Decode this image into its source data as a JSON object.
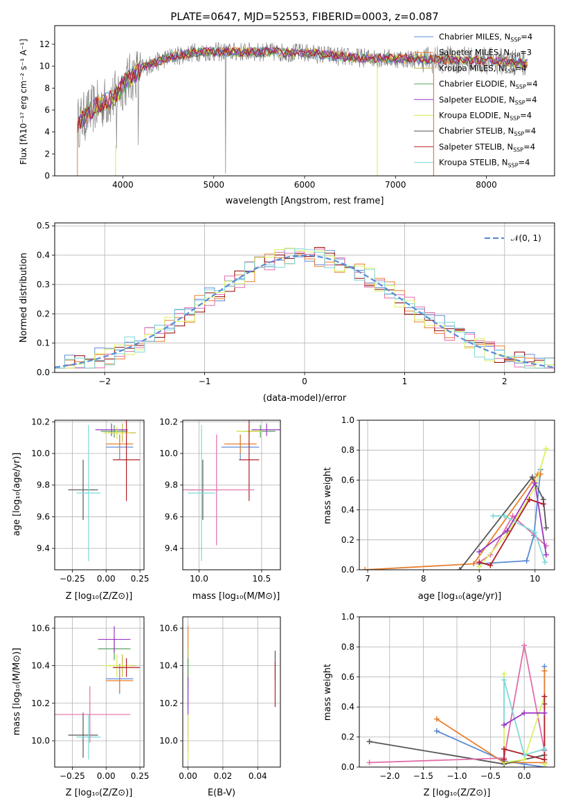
{
  "title": "PLATE=0647, MJD=52553, FIBERID=0003, z=0.087",
  "colors": {
    "model_colors": [
      "#5b8bd6",
      "#e87e2c",
      "#c8b43a",
      "#55a05a",
      "#9b35c2",
      "#d9e84a",
      "#555555",
      "#b01c24",
      "#7dd8d8"
    ],
    "data_color": "#808080",
    "normal_color": "#5b8bd6",
    "hist_colors": [
      "#5b8bd6",
      "#e87e2c",
      "#8b0000",
      "#e06ca8",
      "#d9f060",
      "#7dd8d8"
    ]
  },
  "panels": {
    "spectrum": {
      "xlabel": "wavelength [Angstrom, rest frame]",
      "ylabel": "Flux [fλ10⁻¹⁷ erg cm⁻² s⁻¹ A⁻¹]"
    },
    "resid": {
      "xlabel": "(data-model)/error",
      "ylabel": "Normed distribution",
      "legend": "𝒩(0, 1)"
    },
    "age_z": {
      "xlabel": "Z [log₁₀(Z/Z⊙)]",
      "ylabel": "age  [log₁₀(age/yr)]"
    },
    "age_mass": {
      "xlabel": "mass [log₁₀(M/M⊙)]"
    },
    "mw_age": {
      "xlabel": "age  [log₁₀(age/yr)]",
      "ylabel": "mass weight"
    },
    "mass_z": {
      "xlabel": "Z [log₁₀(Z/Z⊙)]",
      "ylabel": "mass [log₁₀(M/M⊙)]"
    },
    "mass_ebv": {
      "xlabel": "E(B-V)"
    },
    "mw_z": {
      "xlabel": "Z [log₁₀(Z/Z⊙)]",
      "ylabel": "mass weight"
    }
  },
  "chart_data": [
    {
      "id": "spectrum",
      "type": "line",
      "xlim": [
        3250,
        8750
      ],
      "ylim": [
        0,
        13.7
      ],
      "xticks": [
        4000,
        5000,
        6000,
        7000,
        8000
      ],
      "yticks": [
        0,
        2,
        4,
        6,
        8,
        10,
        12
      ],
      "legend_position": "right",
      "series": [
        {
          "name": "Chabrier MILES, N_SSP=4"
        },
        {
          "name": "Salpeter MILES, N_SSP=3"
        },
        {
          "name": "Kroupa MILES, N_SSP=4"
        },
        {
          "name": "Chabrier ELODIE, N_SSP=4"
        },
        {
          "name": "Salpeter ELODIE, N_SSP=4"
        },
        {
          "name": "Kroupa ELODIE, N_SSP=4"
        },
        {
          "name": "Chabrier STELIB, N_SSP=4"
        },
        {
          "name": "Salpeter STELIB, N_SSP=4"
        },
        {
          "name": "Kroupa STELIB, N_SSP=4"
        }
      ],
      "continuum": {
        "x": [
          3500,
          3700,
          3900,
          4000,
          4200,
          4500,
          4800,
          5000,
          5500,
          6000,
          6500,
          7000,
          7500,
          8000,
          8450
        ],
        "y": [
          4.8,
          6.3,
          7.1,
          8.3,
          9.8,
          10.8,
          11.3,
          11.3,
          11.3,
          11.2,
          10.8,
          10.7,
          10.6,
          10.5,
          10.3
        ]
      }
    },
    {
      "id": "resid",
      "type": "line",
      "xlim": [
        -2.5,
        2.5
      ],
      "ylim": [
        0,
        0.51
      ],
      "xticks": [
        -2,
        -1,
        0,
        1,
        2
      ],
      "yticks": [
        0.0,
        0.1,
        0.2,
        0.3,
        0.4,
        0.5
      ],
      "grid": true,
      "legend_position": "top-right",
      "bin_width": 0.1,
      "series": [
        {
          "name": "𝒩(0, 1)",
          "mu": 0,
          "sigma": 1
        }
      ]
    },
    {
      "id": "age_z",
      "type": "scatter",
      "xlim": [
        -0.38,
        0.28
      ],
      "ylim": [
        9.265,
        10.21
      ],
      "xticks": [
        -0.25,
        0.0,
        0.25
      ],
      "yticks": [
        9.4,
        9.6,
        9.8,
        10.0,
        10.2
      ],
      "grid": true,
      "points": [
        {
          "x": 0.1,
          "y": 10.04,
          "xerr": 0.1,
          "yerr": 0.08
        },
        {
          "x": 0.1,
          "y": 10.06,
          "xerr": 0.1,
          "yerr": 0.06
        },
        {
          "x": 0.12,
          "y": 10.13,
          "xerr": 0.1,
          "yerr": 0.06
        },
        {
          "x": 0.06,
          "y": 10.14,
          "xerr": 0.1,
          "yerr": 0.04
        },
        {
          "x": 0.04,
          "y": 10.15,
          "xerr": 0.12,
          "yerr": 0.04
        },
        {
          "x": 0.08,
          "y": 10.13,
          "xerr": 0.1,
          "yerr": 0.04
        },
        {
          "x": -0.17,
          "y": 9.77,
          "xerr": 0.11,
          "yerr": 0.19
        },
        {
          "x": 0.15,
          "y": 9.96,
          "xerr": 0.1,
          "yerr": 0.26
        },
        {
          "x": -0.13,
          "y": 9.75,
          "xerr": 0.09,
          "yerr": 0.43
        }
      ]
    },
    {
      "id": "age_mass",
      "type": "scatter",
      "xlim": [
        9.87,
        10.65
      ],
      "ylim": [
        9.265,
        10.21
      ],
      "xticks": [
        10.0,
        10.5
      ],
      "yticks": [
        9.4,
        9.6,
        9.8,
        10.0,
        10.2
      ],
      "grid": true,
      "points": [
        {
          "x": 10.33,
          "y": 10.04,
          "xerr": 0.15,
          "yerr": 0.08
        },
        {
          "x": 10.33,
          "y": 10.06,
          "xerr": 0.13,
          "yerr": 0.06
        },
        {
          "x": 10.4,
          "y": 10.14,
          "xerr": 0.1,
          "yerr": 0.04
        },
        {
          "x": 10.49,
          "y": 10.14,
          "xerr": 0.12,
          "yerr": 0.04
        },
        {
          "x": 10.54,
          "y": 10.15,
          "xerr": 0.12,
          "yerr": 0.04
        },
        {
          "x": 10.4,
          "y": 10.14,
          "xerr": 0.1,
          "yerr": 0.04
        },
        {
          "x": 10.03,
          "y": 9.77,
          "xerr": 0.13,
          "yerr": 0.19
        },
        {
          "x": 10.4,
          "y": 9.96,
          "xerr": 0.08,
          "yerr": 0.26
        },
        {
          "x": 10.02,
          "y": 9.75,
          "xerr": 0.11,
          "yerr": 0.43
        },
        {
          "x": 10.14,
          "y": 9.77,
          "xerr": 0.3,
          "yerr": 0.35
        }
      ]
    },
    {
      "id": "mw_age",
      "type": "line",
      "xlim": [
        6.85,
        10.35
      ],
      "ylim": [
        0,
        1.0
      ],
      "xticks": [
        7,
        8,
        9,
        10
      ],
      "yticks": [
        0.0,
        0.2,
        0.4,
        0.6,
        0.8,
        1.0
      ],
      "grid": true,
      "series": [
        {
          "x": [
            9.0,
            9.85,
            9.98,
            10.1
          ],
          "y": [
            0.04,
            0.06,
            0.23,
            0.67
          ]
        },
        {
          "x": [
            6.95,
            8.9,
            10.05,
            10.1
          ],
          "y": [
            0.0,
            0.04,
            0.64,
            0.64
          ]
        },
        {
          "x": [
            8.65,
            9.95,
            10.15,
            10.2
          ],
          "y": [
            0.0,
            0.62,
            0.47,
            0.28
          ]
        },
        {
          "x": [
            9.0,
            9.2,
            9.6,
            10.2
          ],
          "y": [
            0.05,
            0.1,
            0.36,
            0.16
          ]
        },
        {
          "x": [
            9.0,
            9.5,
            10.0,
            10.2
          ],
          "y": [
            0.02,
            0.24,
            0.55,
            0.81
          ]
        },
        {
          "x": [
            9.0,
            9.2,
            9.9,
            10.15
          ],
          "y": [
            0.05,
            0.03,
            0.47,
            0.44
          ]
        },
        {
          "x": [
            9.25,
            9.45,
            10.0,
            10.18
          ],
          "y": [
            0.36,
            0.36,
            0.25,
            0.05
          ]
        },
        {
          "x": [
            9.0,
            9.5,
            10.0,
            10.2
          ],
          "y": [
            0.12,
            0.26,
            0.58,
            0.1
          ]
        }
      ]
    },
    {
      "id": "mass_z",
      "type": "scatter",
      "xlim": [
        -0.38,
        0.28
      ],
      "ylim": [
        9.86,
        10.66
      ],
      "xticks": [
        -0.25,
        0.0,
        0.25
      ],
      "yticks": [
        10.0,
        10.2,
        10.4,
        10.6
      ],
      "grid": true,
      "points": [
        {
          "x": 0.1,
          "y": 10.33,
          "xerr": 0.1,
          "yerr": 0.08
        },
        {
          "x": 0.1,
          "y": 10.32,
          "xerr": 0.1,
          "yerr": 0.06
        },
        {
          "x": 0.12,
          "y": 10.4,
          "xerr": 0.1,
          "yerr": 0.06
        },
        {
          "x": 0.06,
          "y": 10.49,
          "xerr": 0.12,
          "yerr": 0.06
        },
        {
          "x": 0.06,
          "y": 10.54,
          "xerr": 0.12,
          "yerr": 0.07
        },
        {
          "x": 0.08,
          "y": 10.4,
          "xerr": 0.1,
          "yerr": 0.06
        },
        {
          "x": -0.17,
          "y": 10.03,
          "xerr": 0.11,
          "yerr": 0.12
        },
        {
          "x": 0.15,
          "y": 10.39,
          "xerr": 0.1,
          "yerr": 0.05
        },
        {
          "x": -0.13,
          "y": 10.02,
          "xerr": 0.09,
          "yerr": 0.12
        },
        {
          "x": -0.12,
          "y": 10.14,
          "xerr": 0.3,
          "yerr": 0.15
        }
      ]
    },
    {
      "id": "mass_ebv",
      "type": "scatter",
      "xlim": [
        -0.003,
        0.053
      ],
      "ylim": [
        9.86,
        10.66
      ],
      "xticks": [
        0.0,
        0.02,
        0.04
      ],
      "yticks": [
        10.0,
        10.2,
        10.4,
        10.6
      ],
      "grid": true,
      "points": [
        {
          "x": 0.0,
          "y": 10.33,
          "xerr": 0,
          "yerr": 0.15
        },
        {
          "x": 0.0,
          "y": 10.54,
          "xerr": 0,
          "yerr": 0.07
        },
        {
          "x": 0.0,
          "y": 10.4,
          "xerr": 0,
          "yerr": 0.1
        },
        {
          "x": 0.0,
          "y": 10.36,
          "xerr": 0,
          "yerr": 0.08
        },
        {
          "x": 0.0,
          "y": 10.14,
          "xerr": 0,
          "yerr": 0.2
        },
        {
          "x": 0.0,
          "y": 10.02,
          "xerr": 0,
          "yerr": 0.12
        },
        {
          "x": 0.05,
          "y": 10.4,
          "xerr": 0,
          "yerr": 0.08
        },
        {
          "x": 0.05,
          "y": 10.3,
          "xerr": 0,
          "yerr": 0.12
        }
      ]
    },
    {
      "id": "mw_z",
      "type": "line",
      "xlim": [
        -2.45,
        0.45
      ],
      "ylim": [
        0,
        1.0
      ],
      "xticks": [
        -2.0,
        -1.5,
        -1.0,
        -0.5,
        0.0
      ],
      "yticks": [
        0.0,
        0.2,
        0.4,
        0.6,
        0.8,
        1.0
      ],
      "grid": true,
      "series": [
        {
          "x": [
            -1.3,
            -0.3,
            0.0,
            0.3,
            0.3
          ],
          "y": [
            0.24,
            0.04,
            0.02,
            0.0,
            0.67
          ]
        },
        {
          "x": [
            -1.3,
            -0.3,
            0.3,
            0.3
          ],
          "y": [
            0.32,
            0.03,
            0.03,
            0.64
          ]
        },
        {
          "x": [
            -2.3,
            -0.3,
            0.3,
            0.3
          ],
          "y": [
            0.17,
            0.02,
            0.08,
            0.42
          ]
        },
        {
          "x": [
            -2.3,
            -0.3,
            0.0,
            0.3
          ],
          "y": [
            0.03,
            0.06,
            0.81,
            0.11
          ]
        },
        {
          "x": [
            -0.3,
            -0.3,
            0.0,
            0.3,
            0.3
          ],
          "y": [
            0.62,
            0.03,
            0.05,
            0.47,
            0.02
          ]
        },
        {
          "x": [
            -0.3,
            -0.3,
            0.3,
            0.3
          ],
          "y": [
            0.05,
            0.12,
            0.05,
            0.47
          ]
        },
        {
          "x": [
            -0.3,
            -0.3,
            0.0,
            0.3
          ],
          "y": [
            0.28,
            0.58,
            0.08,
            0.12
          ]
        },
        {
          "x": [
            -0.3,
            0.0,
            0.3
          ],
          "y": [
            0.28,
            0.36,
            0.36
          ]
        }
      ]
    }
  ]
}
